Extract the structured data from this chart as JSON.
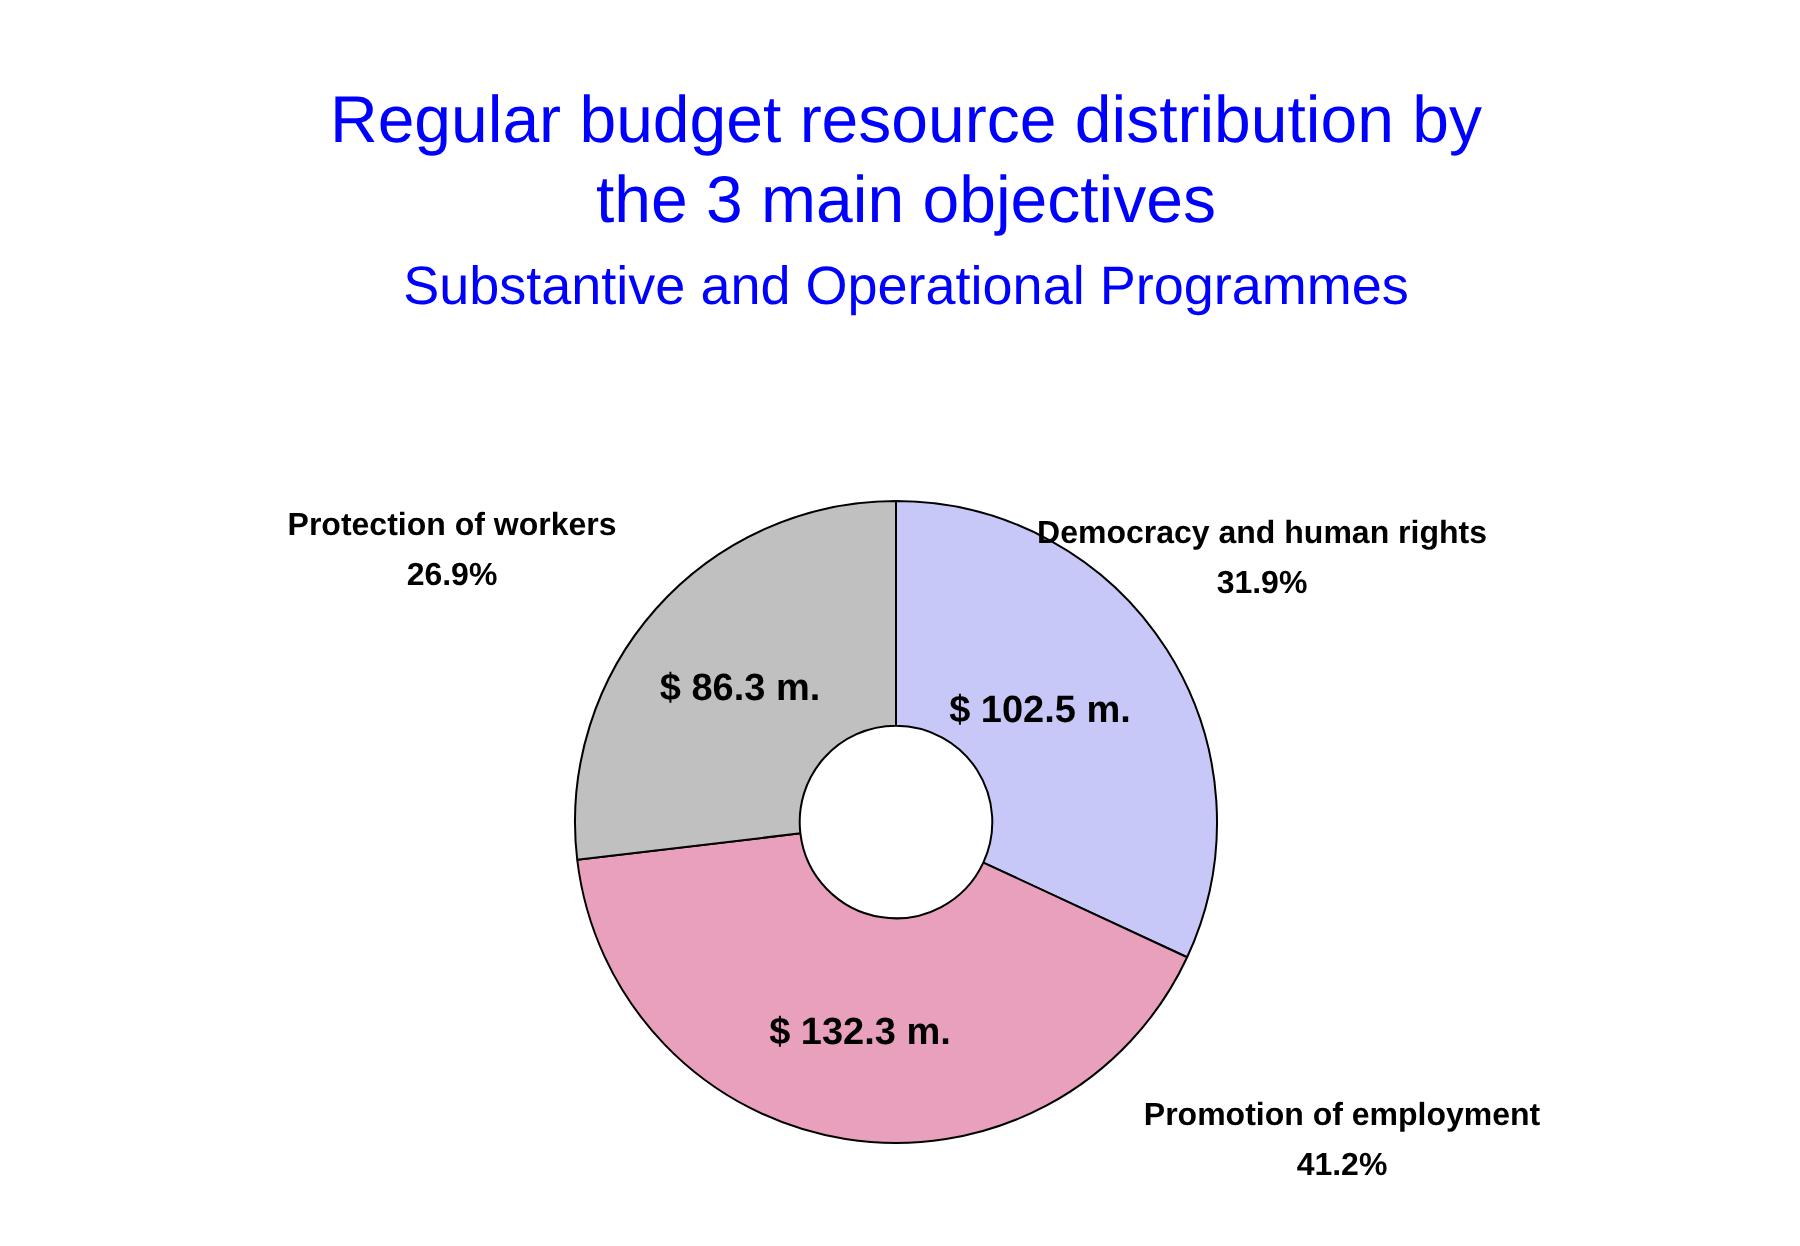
{
  "chart_data": {
    "type": "donut",
    "title": "Regular budget resource distribution by the 3 main objectives",
    "subtitle": "Substantive and Operational Programmes",
    "categories": [
      "Democracy and human rights",
      "Promotion of employment",
      "Protection of workers"
    ],
    "values": [
      102.5,
      132.3,
      86.3
    ],
    "colors": [
      "#c8c8f8",
      "#e8a0bc",
      "#c0c0c0"
    ],
    "value_labels": [
      "$ 102.5 m.",
      "$ 132.3 m.",
      "$ 86.3 m."
    ],
    "annotations": [
      {
        "text": "31.9%",
        "x": "Democracy and human rights"
      },
      {
        "text": "41.2%",
        "x": "Promotion of employment"
      },
      {
        "text": "26.9%",
        "x": "Protection of workers"
      }
    ],
    "legend": false
  }
}
